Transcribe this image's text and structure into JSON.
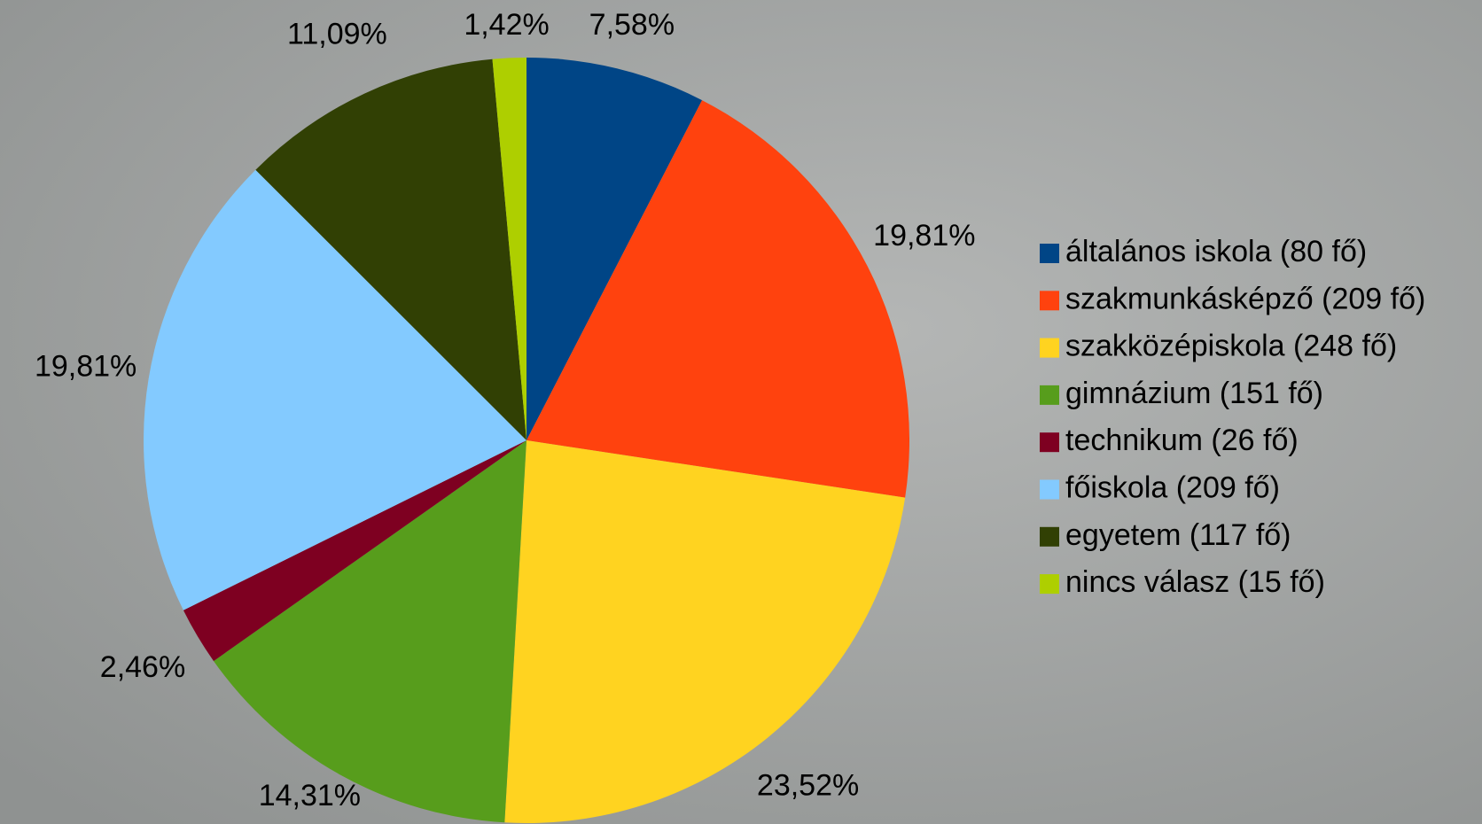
{
  "chart_data": {
    "type": "pie",
    "categories": [
      "általános iskola (80 fő)",
      "szakmunkásképző (209 fő)",
      "szakközépiskola (248 fő)",
      "gimnázium (151 fő)",
      "technikum (26 fő)",
      "főiskola (209 fő)",
      "egyetem (117 fő)",
      "nincs válasz (15 fő)"
    ],
    "values": [
      7.58,
      19.81,
      23.52,
      14.31,
      2.46,
      19.81,
      11.09,
      1.42
    ],
    "value_labels": [
      "7,58%",
      "19,81%",
      "23,52%",
      "14,31%",
      "2,46%",
      "19,81%",
      "11,09%",
      "1,42%"
    ],
    "colors": [
      "#004586",
      "#ff420e",
      "#ffd320",
      "#579d1c",
      "#7e0021",
      "#83caff",
      "#314004",
      "#aecf00"
    ],
    "legend": "right"
  }
}
